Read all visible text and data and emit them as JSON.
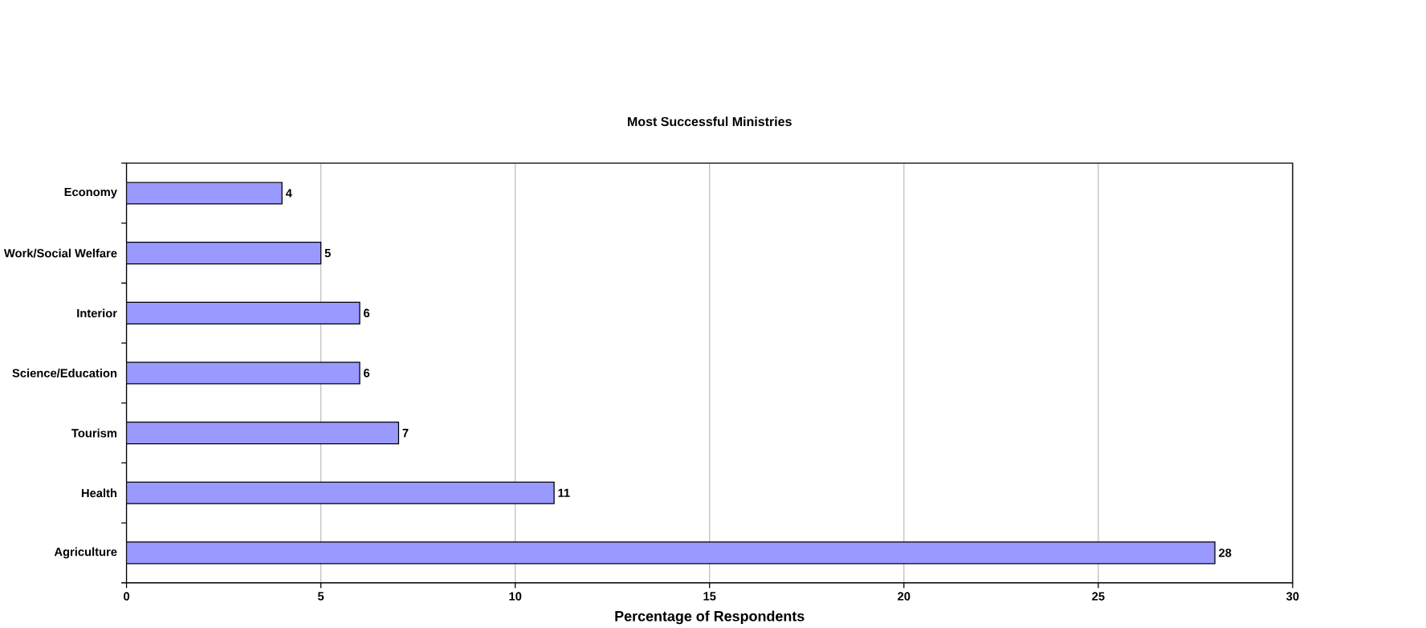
{
  "chart_data": {
    "type": "bar",
    "orientation": "horizontal",
    "title": "Most Successful Ministries",
    "xlabel": "Percentage of Respondents",
    "categories": [
      "Economy",
      "Work/Social Welfare",
      "Interior",
      "Science/Education",
      "Tourism",
      "Health",
      "Agriculture"
    ],
    "values": [
      4,
      5,
      6,
      6,
      7,
      11,
      28
    ],
    "color": "#9999ff",
    "xlim": [
      0,
      30
    ],
    "xticks": [
      0,
      5,
      10,
      15,
      20,
      25,
      30
    ],
    "grid": "x",
    "data_labels": true
  }
}
